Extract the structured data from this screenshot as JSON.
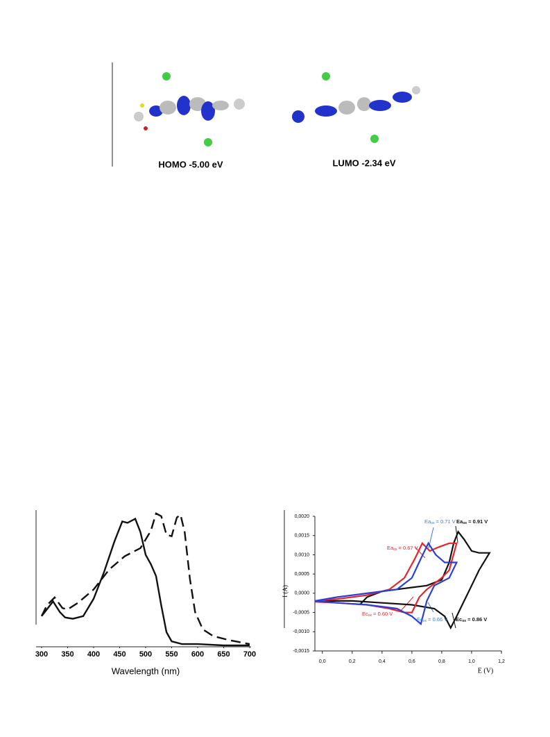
{
  "figure_top": {
    "homo_label": "HOMO -5.00 eV",
    "lumo_label": "LUMO -2.34 eV"
  },
  "chart_data": [
    {
      "type": "line",
      "xlabel": "Wavelength (nm)",
      "xlim": [
        300,
        700
      ],
      "ylim": [
        0,
        1
      ],
      "xticks": [
        300,
        350,
        400,
        450,
        500,
        550,
        600,
        650,
        700
      ],
      "series": [
        {
          "color": "#111111",
          "dash": false,
          "x": [
            300,
            310,
            322,
            335,
            345,
            360,
            380,
            400,
            420,
            440,
            455,
            465,
            480,
            490,
            500,
            510,
            520,
            530,
            540,
            550,
            570,
            600,
            650,
            700
          ],
          "values": [
            0.22,
            0.27,
            0.33,
            0.25,
            0.21,
            0.2,
            0.22,
            0.35,
            0.55,
            0.78,
            0.93,
            0.92,
            0.95,
            0.85,
            0.68,
            0.61,
            0.52,
            0.3,
            0.1,
            0.03,
            0.01,
            0.01,
            0,
            0
          ]
        },
        {
          "color": "#111111",
          "dash": true,
          "x": [
            300,
            310,
            325,
            340,
            350,
            370,
            400,
            430,
            460,
            490,
            510,
            520,
            530,
            540,
            550,
            560,
            567,
            575,
            585,
            595,
            610,
            630,
            660,
            700
          ],
          "values": [
            0.22,
            0.3,
            0.36,
            0.28,
            0.27,
            0.32,
            0.42,
            0.57,
            0.67,
            0.73,
            0.86,
            0.99,
            0.97,
            0.83,
            0.82,
            0.96,
            0.98,
            0.85,
            0.5,
            0.25,
            0.12,
            0.07,
            0.04,
            0.01
          ]
        }
      ]
    },
    {
      "type": "line",
      "xlabel": "E (V)",
      "ylabel": "I (A)",
      "xlim": [
        -0.05,
        1.2
      ],
      "ylim": [
        -0.0015,
        0.002
      ],
      "xticks": [
        {
          "value": 0,
          "label": "0,0"
        },
        {
          "value": 0.2,
          "label": "0,2"
        },
        {
          "value": 0.4,
          "label": "0,4"
        },
        {
          "value": 0.6,
          "label": "0,6"
        },
        {
          "value": 0.8,
          "label": "0,8"
        },
        {
          "value": 1,
          "label": "1,0"
        },
        {
          "value": 1.2,
          "label": "1,2"
        }
      ],
      "yticks": [
        {
          "value": 0.002,
          "label": "0,0020"
        },
        {
          "value": 0.0015,
          "label": "0,0015"
        },
        {
          "value": 0.001,
          "label": "0,0010"
        },
        {
          "value": 0.0005,
          "label": "0,0005"
        },
        {
          "value": 0,
          "label": "0,0000"
        },
        {
          "value": -0.0005,
          "label": "-0,0005"
        },
        {
          "value": -0.001,
          "label": "-0,0010"
        },
        {
          "value": -0.0015,
          "label": "-0,0015"
        }
      ],
      "series": [
        {
          "color": "#111111",
          "x": [
            0.25,
            0.3,
            0.4,
            0.5,
            0.6,
            0.7,
            0.8,
            0.85,
            0.88,
            0.91,
            0.95,
            1.0,
            1.05,
            1.12,
            1.05,
            1.0,
            0.95,
            0.9,
            0.86,
            0.82,
            0.75,
            0.6,
            0.4,
            0.2,
            0.0,
            -0.05
          ],
          "values": [
            -0.0003,
            -0.0001,
            5e-05,
            0.0001,
            0.00015,
            0.0002,
            0.00035,
            0.0008,
            0.0013,
            0.0016,
            0.0014,
            0.0011,
            0.00105,
            0.00105,
            0.0006,
            0.0002,
            -0.0002,
            -0.0006,
            -0.0009,
            -0.0006,
            -0.0004,
            -0.0003,
            -0.00025,
            -0.0002,
            -0.0002,
            -0.0002
          ]
        },
        {
          "color": "#e8242a",
          "x": [
            -0.05,
            0.1,
            0.3,
            0.45,
            0.55,
            0.62,
            0.67,
            0.72,
            0.78,
            0.85,
            0.9,
            0.85,
            0.8,
            0.7,
            0.65,
            0.6,
            0.55,
            0.45,
            0.3,
            0.1,
            -0.05
          ],
          "values": [
            -0.0002,
            -0.00015,
            -5e-05,
            0.0001,
            0.0004,
            0.0009,
            0.0013,
            0.0011,
            0.0012,
            0.0013,
            0.0013,
            0.0006,
            0.0004,
            0.0001,
            -0.0001,
            -0.0005,
            -0.0005,
            -0.0004,
            -0.0003,
            -0.00025,
            -0.00022
          ]
        },
        {
          "color": "#2b3fd6",
          "x": [
            -0.05,
            0.1,
            0.3,
            0.5,
            0.6,
            0.66,
            0.71,
            0.76,
            0.82,
            0.9,
            0.85,
            0.75,
            0.7,
            0.66,
            0.6,
            0.5,
            0.3,
            0.1,
            -0.05
          ],
          "values": [
            -0.0002,
            -0.0001,
            0,
            0.0001,
            0.0004,
            0.0009,
            0.0013,
            0.001,
            0.0008,
            0.0008,
            0.0004,
            0.0002,
            -0.0002,
            -0.0008,
            -0.0006,
            -0.0004,
            -0.0003,
            -0.00025,
            -0.0002
          ]
        }
      ],
      "annotations": [
        {
          "text": "Ea",
          "sub": "ox",
          "rest": " = 0.71 V",
          "color": "#3a7cc8"
        },
        {
          "text": "Ea",
          "sub": "ox",
          "rest": " = 0.91 V",
          "color": "#111111"
        },
        {
          "text": "Ea",
          "sub": "ox",
          "rest": " = 0.67 V",
          "color": "#e8242a"
        },
        {
          "text": "Ec",
          "sub": "ox",
          "rest": " = 0.60 V",
          "color": "#e8242a"
        },
        {
          "text": "Ec",
          "sub": "ox",
          "rest": " = 0.66 V",
          "color": "#3a7cc8"
        },
        {
          "text": "Ec",
          "sub": "ox",
          "rest": " = 0.86 V",
          "color": "#111111"
        }
      ]
    }
  ]
}
